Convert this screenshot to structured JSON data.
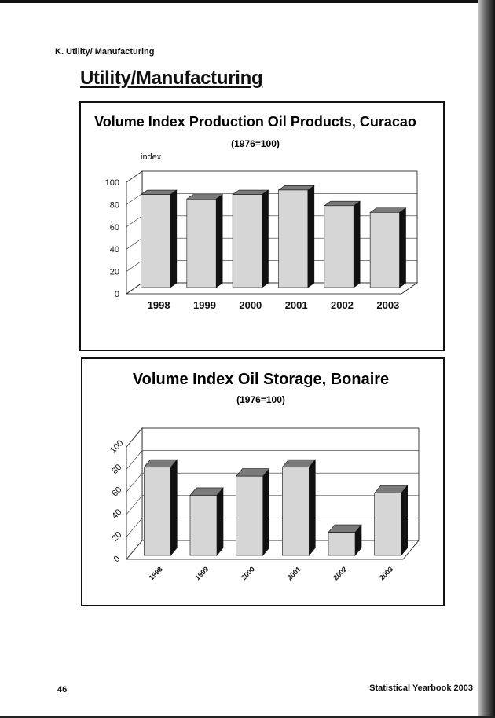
{
  "header": {
    "section_label": "K. Utility/ Manufacturing",
    "page_title": "Utility/Manufacturing"
  },
  "footer": {
    "page_number": "46",
    "publication": "Statistical Yearbook 2003"
  },
  "colors": {
    "bar_front": "#d6d6d6",
    "bar_side": "#111111",
    "bar_top": "#7a7a7a",
    "frame": "#111111"
  },
  "chart_data": [
    {
      "type": "bar",
      "title": "Volume Index Production Oil Products, Curacao",
      "subtitle": "(1976=100)",
      "ylabel": "index",
      "categories": [
        "1998",
        "1999",
        "2000",
        "2001",
        "2002",
        "2003"
      ],
      "values": [
        89,
        85,
        89,
        93,
        79,
        73
      ],
      "ylim": [
        0,
        100
      ],
      "yticks": [
        "0",
        "20",
        "40",
        "60",
        "80",
        "100"
      ],
      "grid": true,
      "three_d": true,
      "x_labels_rotated": false
    },
    {
      "type": "bar",
      "title": "Volume Index  Oil Storage, Bonaire",
      "subtitle": "(1976=100)",
      "ylabel": "",
      "categories": [
        "1998",
        "1999",
        "2000",
        "2001",
        "2002",
        "2003"
      ],
      "values": [
        82,
        57,
        74,
        82,
        24,
        59
      ],
      "ylim": [
        0,
        100
      ],
      "yticks": [
        "0",
        "20",
        "40",
        "60",
        "80",
        "100"
      ],
      "grid": true,
      "three_d": true,
      "x_labels_rotated": true
    }
  ]
}
